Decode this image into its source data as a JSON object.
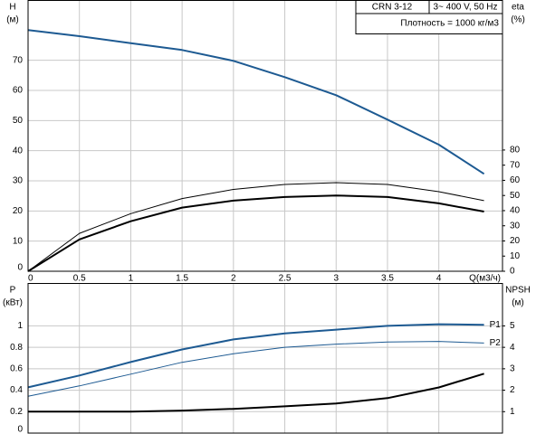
{
  "chart_data": [
    {
      "type": "line",
      "annotations": [
        "CRN 3-12",
        "3~ 400 V, 50 Hz",
        "Плотность = 1000 кг/м3"
      ],
      "ylabel": [
        "H",
        "(м)"
      ],
      "y2label": [
        "eta",
        "(%)"
      ],
      "xlabel": "Q(м3/ч)",
      "x": [
        0,
        0.5,
        1,
        1.5,
        2,
        2.5,
        3,
        3.5,
        4,
        4.44
      ],
      "series": [
        {
          "color": "#1d5a92",
          "width": 2,
          "values": [
            80,
            78,
            75.7,
            73.4,
            69.8,
            64.4,
            58.4,
            50.3,
            42,
            32.3
          ]
        },
        {
          "color": "#000000",
          "width": 1,
          "axis": "y2",
          "values": [
            0,
            25,
            38,
            48,
            54,
            57.3,
            58.5,
            57.3,
            52.5,
            46.6
          ]
        },
        {
          "color": "#000000",
          "width": 2,
          "axis": "y2",
          "values": [
            0,
            21,
            33,
            42,
            46.6,
            49,
            50,
            49,
            44.8,
            39.4
          ]
        }
      ],
      "xlim": [
        0,
        4.62
      ],
      "xticks": [
        0,
        0.5,
        1,
        1.5,
        2,
        2.5,
        3,
        3.5,
        4
      ],
      "xtick_labels": true,
      "ylim": [
        0,
        90
      ],
      "yticks": [
        0,
        10,
        20,
        30,
        40,
        50,
        60,
        70
      ],
      "y2lim": [
        0,
        179
      ],
      "y2ticks": [
        0,
        10,
        20,
        30,
        40,
        50,
        60,
        70,
        80
      ],
      "grid": true
    },
    {
      "type": "line",
      "ylabel": [
        "P",
        "(кВт)"
      ],
      "y2label": [
        "NPSH",
        "(м)"
      ],
      "x": [
        0,
        0.5,
        1,
        1.5,
        2,
        2.5,
        3,
        3.5,
        4,
        4.44
      ],
      "series": [
        {
          "name": "P1",
          "color": "#1d5a92",
          "width": 2,
          "values": [
            0.427,
            0.537,
            0.663,
            0.78,
            0.874,
            0.93,
            0.965,
            1.0,
            1.015,
            1.01
          ]
        },
        {
          "name": "P2",
          "color": "#1d5a92",
          "width": 1,
          "values": [
            0.343,
            0.44,
            0.55,
            0.66,
            0.74,
            0.8,
            0.83,
            0.85,
            0.855,
            0.84
          ]
        },
        {
          "color": "#000000",
          "width": 2,
          "axis": "y2",
          "values": [
            1.0,
            1.0,
            1.0,
            1.05,
            1.13,
            1.25,
            1.38,
            1.63,
            2.13,
            2.77
          ]
        }
      ],
      "xlim": [
        0,
        4.62
      ],
      "xticks": [
        0,
        0.5,
        1,
        1.5,
        2,
        2.5,
        3,
        3.5,
        4
      ],
      "xtick_labels": false,
      "ylim": [
        0,
        1.4
      ],
      "yticks": [
        0,
        0.2,
        0.4,
        0.6,
        0.8,
        1
      ],
      "y2lim": [
        0,
        7
      ],
      "y2ticks": [
        1,
        2,
        3,
        4,
        5
      ],
      "grid": true
    }
  ]
}
